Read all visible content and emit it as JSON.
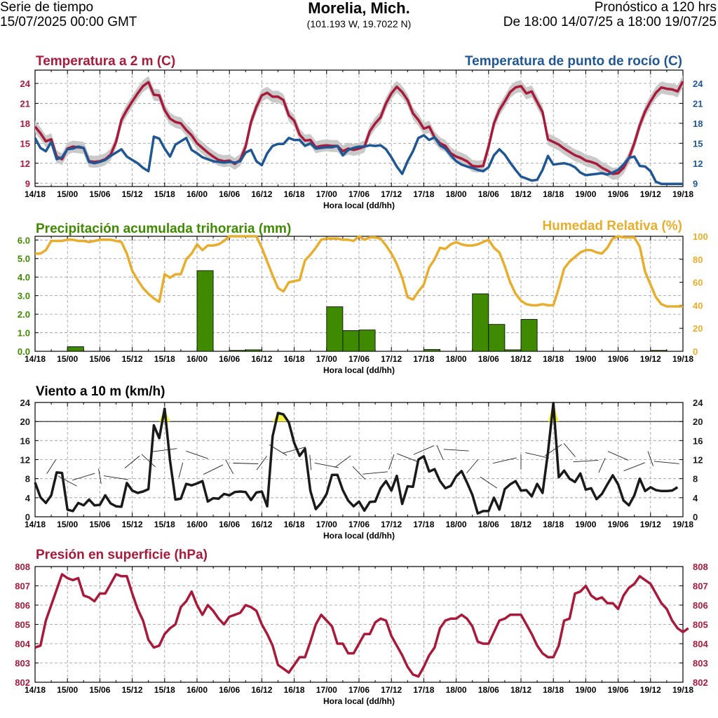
{
  "header": {
    "left_line1": "Serie de tiempo",
    "left_line2": "15/07/2025 00:00 GMT",
    "title": "Morelia, Mich.",
    "coords": "(101.193 W, 19.7022 N)",
    "right_line1": "Pronóstico a 120 hrs",
    "right_line2": "De 18:00 14/07/25 a 18:00 19/07/25"
  },
  "colors": {
    "temp": "#a8193a",
    "dew": "#1f5694",
    "precip": "#3f8a00",
    "rh": "#e8ad2b",
    "wind": "#1a1a1a",
    "pres": "#a8193a",
    "band": "#c9c9c9"
  },
  "chart_data": [
    {
      "type": "line",
      "id": "temp",
      "title_left": "Temperatura a 2 m (C)",
      "title_right": "Temperatura de punto de rocío (C)",
      "xlabel": "Hora local (dd/hh)",
      "x_ticks": [
        "14/18",
        "15/00",
        "15/06",
        "15/12",
        "15/18",
        "16/00",
        "16/06",
        "16/12",
        "16/18",
        "17/00",
        "17/06",
        "17/12",
        "17/18",
        "18/00",
        "18/06",
        "18/12",
        "18/18",
        "19/00",
        "19/06",
        "19/12",
        "19/18"
      ],
      "ylim": [
        8.5,
        26
      ],
      "y_ticks_left": [
        "9",
        "12",
        "15",
        "18",
        "21",
        "24"
      ],
      "y_ticks_right": [
        "9",
        "12",
        "15",
        "18",
        "21",
        "24"
      ],
      "series": [
        {
          "name": "Temperatura a 2 m",
          "values": [
            17.5,
            16.5,
            15.3,
            15.6,
            13,
            12.6,
            14.2,
            14.5,
            14.4,
            14.3,
            12.3,
            12.2,
            12.3,
            12.6,
            13.3,
            15.2,
            18.5,
            20,
            21.3,
            22.5,
            23.6,
            24.2,
            22.3,
            22.2,
            20,
            18.7,
            18.2,
            18,
            17,
            16.2,
            15,
            14.3,
            13.6,
            13,
            12.5,
            12.3,
            12.4,
            11.9,
            12.5,
            14.5,
            18.2,
            20.5,
            22.2,
            22.6,
            22,
            22,
            21.5,
            19.2,
            18.4,
            16.3,
            15.4,
            15.5,
            14.4,
            14.6,
            14.7,
            14.6,
            14.6,
            13.8,
            14.2,
            14,
            14.2,
            14.5,
            16.8,
            18,
            18.9,
            21,
            22.5,
            23.5,
            22.7,
            21.5,
            19.5,
            18.5,
            17.2,
            17.5,
            15.9,
            15,
            14.6,
            13.5,
            13,
            12.7,
            12.3,
            11.6,
            11.5,
            11.6,
            14.5,
            18,
            20,
            21.3,
            22.7,
            23.4,
            23.6,
            22.5,
            22.8,
            21.2,
            19.7,
            15.6,
            15.2,
            14.8,
            14.2,
            13.7,
            13.2,
            12.9,
            12.4,
            12.2,
            11.9,
            11.3,
            10.9,
            10.4,
            10.5,
            11.3,
            12.8,
            15,
            17.7,
            19.8,
            21.3,
            22.6,
            23.4,
            23.2,
            23.1,
            22.8,
            24.3
          ]
        },
        {
          "name": "Temperatura de punto de rocío",
          "values": [
            15.8,
            14.3,
            13.8,
            15.2,
            12.6,
            12.9,
            14.1,
            14.2,
            14.5,
            14.3,
            12.2,
            12,
            12.2,
            12.5,
            13.1,
            13.6,
            14.1,
            13,
            12.5,
            12,
            11.3,
            10.8,
            16,
            15.7,
            14.2,
            13,
            14.8,
            15.3,
            15.8,
            14,
            13.5,
            12.9,
            12.6,
            12.3,
            12.2,
            12.1,
            12.2,
            12.1,
            12.3,
            13.6,
            14,
            12.3,
            11.7,
            13.5,
            14.6,
            14.9,
            14.9,
            15.8,
            15.5,
            15.5,
            14.6,
            15,
            14.2,
            14.3,
            14.4,
            14.4,
            14.6,
            13.2,
            14,
            14.3,
            14.5,
            14.5,
            14.7,
            14.6,
            14.7,
            14.1,
            12.9,
            11.5,
            10.4,
            12.3,
            13.8,
            15.8,
            16.2,
            15.5,
            15.9,
            14.7,
            14.2,
            13.2,
            12.3,
            11.8,
            11.5,
            11.3,
            11,
            10.8,
            11.4,
            13.2,
            14.1,
            13.3,
            12.1,
            11,
            10,
            9.7,
            9.4,
            9.5,
            11,
            13.1,
            11.8,
            11.9,
            12,
            11.8,
            11.4,
            10.6,
            10.2,
            10.3,
            10.4,
            10.5,
            10.3,
            10.6,
            11,
            11.8,
            12.8,
            13,
            11.6,
            11.5,
            10.8,
            9.2,
            8.9,
            8.9,
            8.9,
            8.9,
            8.9
          ]
        }
      ]
    },
    {
      "type": "bar",
      "id": "precip",
      "title_left": "Precipitación acumulada trihoraria (mm)",
      "title_right": "Humedad Relativa (%)",
      "xlabel": "Hora local (dd/hh)",
      "x_ticks": [
        "14/18",
        "15/00",
        "15/06",
        "15/12",
        "15/18",
        "16/00",
        "16/06",
        "16/12",
        "16/18",
        "17/00",
        "17/06",
        "17/12",
        "17/18",
        "18/00",
        "18/06",
        "18/12",
        "18/18",
        "19/00",
        "19/06",
        "19/12",
        "19/18"
      ],
      "ylim": [
        0,
        6.2
      ],
      "y_ticks_left": [
        "0.0",
        "1.0",
        "2.0",
        "3.0",
        "4.0",
        "5.0",
        "6.0"
      ],
      "ylim_right": [
        0,
        100
      ],
      "y_ticks_right": [
        "0",
        "20",
        "40",
        "60",
        "80",
        "100"
      ],
      "precip_hours": [
        0,
        3,
        6,
        9,
        12,
        15,
        18,
        21,
        24,
        27,
        30,
        33,
        36,
        39,
        42,
        45,
        48,
        51,
        54,
        57,
        60,
        63,
        66,
        69,
        72,
        75,
        78,
        81,
        84,
        87,
        90,
        93,
        96,
        99,
        102,
        105,
        108,
        111,
        114,
        117
      ],
      "precip_values": [
        0,
        0,
        0.25,
        0,
        0,
        0,
        0,
        0,
        0,
        0,
        4.35,
        0,
        0.05,
        0.08,
        0,
        0,
        0,
        0,
        2.4,
        1.12,
        1.15,
        0,
        0,
        0,
        0.1,
        0,
        0,
        3.1,
        1.45,
        0.08,
        1.72,
        0,
        0,
        0,
        0,
        0,
        0,
        0,
        0.05,
        0
      ],
      "series": [
        {
          "name": "Humedad Relativa",
          "values": [
            85,
            85,
            88,
            96,
            96,
            96,
            97,
            97,
            96,
            96,
            95,
            96,
            97,
            97,
            97,
            96,
            95,
            85,
            70,
            62,
            55,
            50,
            46,
            43,
            67,
            64,
            67,
            67,
            80,
            85,
            93,
            88,
            92,
            92,
            93,
            96,
            100,
            100,
            100,
            100,
            100,
            100,
            90,
            78,
            66,
            55,
            52,
            60,
            61,
            62,
            79,
            84,
            90,
            97,
            98,
            98,
            98,
            97,
            97,
            96,
            100,
            97,
            99,
            99,
            98,
            92,
            85,
            76,
            64,
            47,
            45,
            52,
            58,
            73,
            80,
            90,
            89,
            93,
            95,
            93,
            92,
            92,
            93,
            95,
            97,
            90,
            86,
            74,
            60,
            50,
            44,
            41,
            40,
            40,
            41,
            40,
            40,
            55,
            72,
            78,
            82,
            86,
            88,
            88,
            86,
            85,
            90,
            98,
            100,
            99,
            99,
            99,
            91,
            69,
            58,
            47,
            41,
            39,
            39,
            39,
            39
          ]
        }
      ]
    },
    {
      "type": "line",
      "id": "wind",
      "title_left": "Viento a 10 m (km/h)",
      "xlabel": "Hora local (dd/hh)",
      "x_ticks": [
        "14/18",
        "15/00",
        "15/06",
        "15/12",
        "15/18",
        "16/00",
        "16/06",
        "16/12",
        "16/18",
        "17/00",
        "17/06",
        "17/12",
        "17/18",
        "18/00",
        "18/06",
        "18/12",
        "18/18",
        "19/00",
        "19/06",
        "19/12",
        "19/18"
      ],
      "ylim": [
        0,
        24
      ],
      "y_ticks_left": [
        "0",
        "4",
        "8",
        "12",
        "16",
        "20",
        "24"
      ],
      "y_ticks_right": [
        "0",
        "4",
        "8",
        "12",
        "16",
        "20",
        "24"
      ],
      "threshold": 20,
      "series": [
        {
          "name": "Viento a 10 m",
          "values": [
            7.2,
            4.1,
            2.9,
            4.5,
            9.3,
            9.2,
            1.5,
            1.2,
            2.9,
            2.4,
            3.6,
            2.4,
            2.5,
            4.5,
            2.8,
            2.2,
            2.1,
            7.1,
            5.5,
            5,
            5.3,
            5.8,
            19.2,
            16.5,
            22.7,
            11.8,
            3.6,
            3.8,
            6.9,
            6.6,
            7,
            7.5,
            3.2,
            3.9,
            3.8,
            4.8,
            4.5,
            5.2,
            5.3,
            5.2,
            3.5,
            5.1,
            5.3,
            2.2,
            16.9,
            21.8,
            21.5,
            19.8,
            15.5,
            12.8,
            14.3,
            5.4,
            1.6,
            2.9,
            4.8,
            8.8,
            8.8,
            5.6,
            3.4,
            2.2,
            3.2,
            1.3,
            3.1,
            3.2,
            6,
            7.5,
            5.5,
            8.6,
            2.7,
            6.4,
            6.3,
            12,
            12.7,
            9.5,
            10,
            7.5,
            6,
            6.5,
            8.5,
            9.6,
            7.2,
            4.6,
            0.7,
            1.2,
            1.2,
            4,
            1.5,
            5.8,
            6.8,
            7.5,
            5.5,
            5.6,
            4.3,
            6.9,
            5,
            13.5,
            23.9,
            8.3,
            9.7,
            8,
            7.3,
            9.1,
            5.7,
            6,
            3.7,
            4.8,
            6.8,
            8.7,
            6.8,
            3.4,
            2.4,
            4.5,
            8,
            5.4,
            6.2,
            5.6,
            5.4,
            5.4,
            5.5,
            6.2
          ]
        }
      ]
    },
    {
      "type": "line",
      "id": "pres",
      "title_left": "Presión en superficie (hPa)",
      "xlabel": "Hora local (dd/hh)",
      "x_ticks": [
        "14/18",
        "15/00",
        "15/06",
        "15/12",
        "15/18",
        "16/00",
        "16/06",
        "16/12",
        "16/18",
        "17/00",
        "17/06",
        "17/12",
        "17/18",
        "18/00",
        "18/06",
        "18/12",
        "18/18",
        "19/00",
        "19/06",
        "19/12",
        "19/18"
      ],
      "ylim": [
        802,
        808
      ],
      "y_ticks_left": [
        "802",
        "803",
        "804",
        "805",
        "806",
        "807",
        "808"
      ],
      "y_ticks_right": [
        "802",
        "803",
        "804",
        "805",
        "806",
        "807",
        "808"
      ],
      "series": [
        {
          "name": "Presión en superficie",
          "values": [
            803.8,
            803.9,
            805.2,
            806,
            806.8,
            807.6,
            807.4,
            807.3,
            807.4,
            806.5,
            806.4,
            806.2,
            806.6,
            806.6,
            807.1,
            807.6,
            807.5,
            807.5,
            806.6,
            805.8,
            805.2,
            804.2,
            803.8,
            803.9,
            804.5,
            804.8,
            805,
            805.9,
            806.2,
            806.7,
            806,
            805.5,
            806,
            805.7,
            805.3,
            805,
            805.4,
            805.5,
            805.6,
            806,
            805.9,
            805.7,
            805,
            804.5,
            803.9,
            802.9,
            802.7,
            802.5,
            802.9,
            803.3,
            803.3,
            804.1,
            805,
            805.5,
            805.2,
            804.9,
            804,
            804,
            803.5,
            803.5,
            804,
            804.5,
            804.5,
            805.1,
            805.3,
            805.2,
            804.4,
            803.9,
            803.4,
            802.8,
            802.4,
            802.3,
            802.8,
            803.4,
            803.8,
            804.8,
            805.2,
            805.3,
            805.3,
            805.5,
            805.3,
            804.9,
            804.1,
            804,
            804,
            804.6,
            805.2,
            805.3,
            805.5,
            805.5,
            805.5,
            805,
            804.5,
            803.9,
            803.5,
            803.3,
            803.3,
            803.9,
            805.2,
            805.3,
            806.6,
            806.7,
            807,
            806.5,
            806.3,
            806.4,
            806.1,
            806.1,
            805.8,
            806.5,
            806.9,
            807.1,
            807.5,
            807.3,
            807.1,
            806.6,
            806.1,
            805.8,
            805.2,
            804.8,
            804.6,
            804.8
          ]
        }
      ]
    }
  ]
}
